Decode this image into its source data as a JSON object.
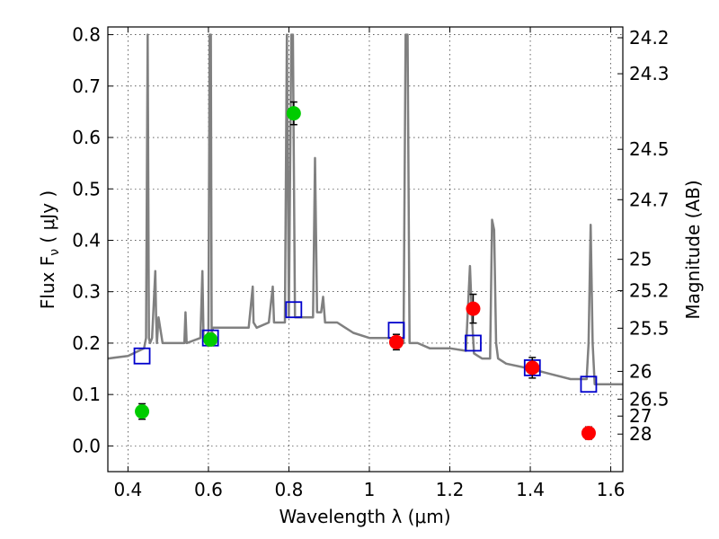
{
  "chart_data": {
    "type": "scatter",
    "xlabel": "Wavelength  λ (μm)",
    "ylabel": "Flux  F_ν  ( μJy )",
    "y2label": "Magnitude (AB)",
    "xlim": [
      0.35,
      1.63
    ],
    "ylim": [
      -0.05,
      0.815
    ],
    "grid": true,
    "x_ticks": [
      0.4,
      0.6,
      0.8,
      1.0,
      1.2,
      1.4,
      1.6
    ],
    "x_tick_labels": [
      "0.4",
      "0.6",
      "0.8",
      "1",
      "1.2",
      "1.4",
      "1.6"
    ],
    "y_ticks": [
      0.0,
      0.1,
      0.2,
      0.3,
      0.4,
      0.5,
      0.6,
      0.7,
      0.8
    ],
    "y_tick_labels": [
      "0.0",
      "0.1",
      "0.2",
      "0.3",
      "0.4",
      "0.5",
      "0.6",
      "0.7",
      "0.8"
    ],
    "mag_ticks": [
      {
        "label": "24.2",
        "y": 0.794
      },
      {
        "label": "24.3",
        "y": 0.724
      },
      {
        "label": "24.5",
        "y": 0.577
      },
      {
        "label": "24.7",
        "y": 0.479
      },
      {
        "label": "25",
        "y": 0.363
      },
      {
        "label": "25.2",
        "y": 0.302
      },
      {
        "label": "25.5",
        "y": 0.229
      },
      {
        "label": "26",
        "y": 0.145
      },
      {
        "label": "26.5",
        "y": 0.091
      },
      {
        "label": "27",
        "y": 0.058
      },
      {
        "label": "28",
        "y": 0.023
      }
    ],
    "series": [
      {
        "kind": "line",
        "color": "#808080",
        "x": [
          0.35,
          0.4,
          0.44,
          0.445,
          0.449,
          0.452,
          0.455,
          0.46,
          0.468,
          0.47,
          0.472,
          0.476,
          0.486,
          0.5,
          0.54,
          0.543,
          0.546,
          0.58,
          0.585,
          0.588,
          0.592,
          0.6,
          0.603,
          0.606,
          0.608,
          0.612,
          0.64,
          0.7,
          0.71,
          0.712,
          0.72,
          0.75,
          0.76,
          0.763,
          0.768,
          0.79,
          0.795,
          0.8,
          0.806,
          0.81,
          0.815,
          0.82,
          0.83,
          0.85,
          0.86,
          0.865,
          0.87,
          0.88,
          0.885,
          0.89,
          0.92,
          0.96,
          1.0,
          1.05,
          1.085,
          1.09,
          1.095,
          1.1,
          1.12,
          1.15,
          1.2,
          1.24,
          1.25,
          1.255,
          1.26,
          1.28,
          1.3,
          1.305,
          1.31,
          1.315,
          1.32,
          1.34,
          1.4,
          1.45,
          1.5,
          1.54,
          1.545,
          1.55,
          1.555,
          1.56,
          1.63
        ],
        "y": [
          0.17,
          0.175,
          0.19,
          0.21,
          0.8,
          0.21,
          0.2,
          0.21,
          0.34,
          0.25,
          0.2,
          0.25,
          0.2,
          0.2,
          0.2,
          0.26,
          0.2,
          0.21,
          0.34,
          0.21,
          0.21,
          0.22,
          0.8,
          0.8,
          0.22,
          0.23,
          0.23,
          0.23,
          0.31,
          0.24,
          0.23,
          0.24,
          0.31,
          0.24,
          0.24,
          0.24,
          0.8,
          0.25,
          0.8,
          0.8,
          0.25,
          0.25,
          0.25,
          0.25,
          0.25,
          0.56,
          0.26,
          0.26,
          0.29,
          0.24,
          0.24,
          0.22,
          0.21,
          0.21,
          0.2,
          0.8,
          0.8,
          0.2,
          0.2,
          0.19,
          0.19,
          0.185,
          0.35,
          0.25,
          0.18,
          0.17,
          0.17,
          0.44,
          0.42,
          0.2,
          0.17,
          0.16,
          0.15,
          0.14,
          0.13,
          0.13,
          0.2,
          0.43,
          0.2,
          0.12,
          0.12
        ]
      },
      {
        "kind": "model_photometry",
        "marker": "open-square",
        "color": "#0000cc",
        "x": [
          0.435,
          0.605,
          0.812,
          1.067,
          1.258,
          1.405,
          1.545
        ],
        "y": [
          0.175,
          0.21,
          0.265,
          0.225,
          0.2,
          0.152,
          0.12
        ]
      },
      {
        "kind": "observed",
        "marker": "filled-circle",
        "x": [
          0.435,
          0.605,
          0.812,
          1.067,
          1.258,
          1.405,
          1.545
        ],
        "y": [
          0.067,
          0.207,
          0.647,
          0.202,
          0.267,
          0.152,
          0.025
        ],
        "yerr": [
          0.015,
          0.012,
          0.022,
          0.015,
          0.028,
          0.02,
          0.012
        ],
        "colors": [
          "#00cc00",
          "#00cc00",
          "#00cc00",
          "#ff0000",
          "#ff0000",
          "#ff0000",
          "#ff0000"
        ]
      }
    ]
  }
}
